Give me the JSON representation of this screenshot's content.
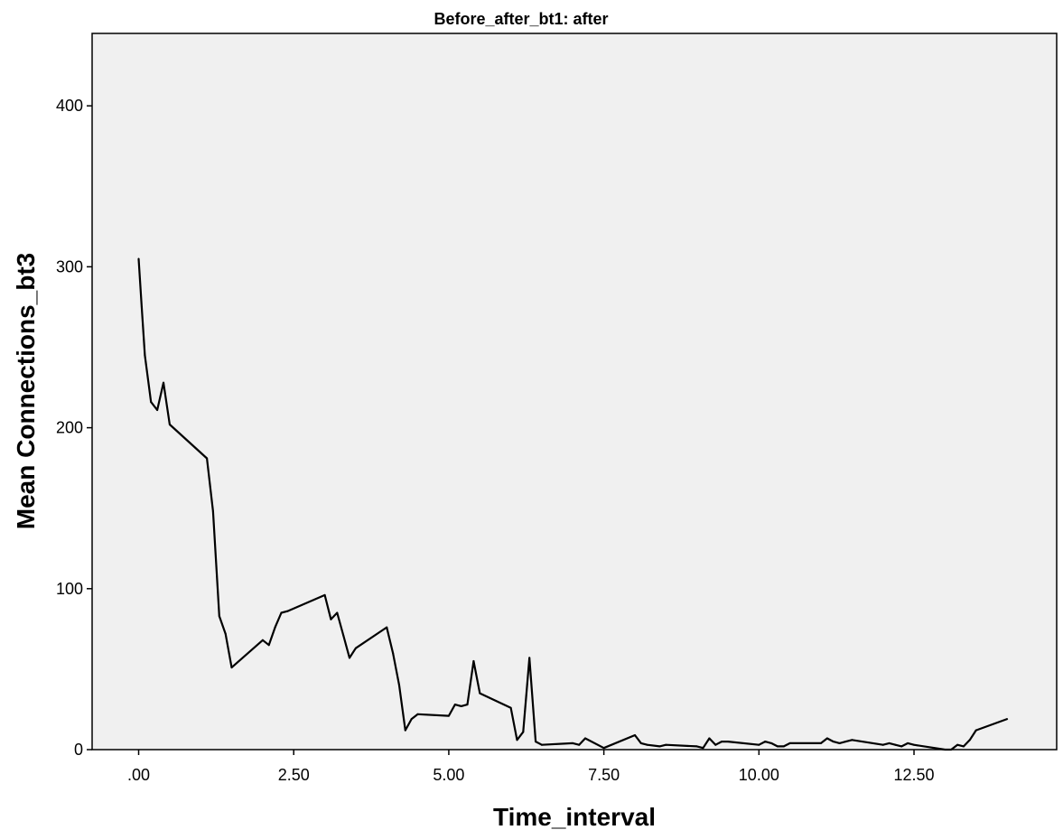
{
  "chart_data": {
    "type": "line",
    "title": "Before_after_bt1: after",
    "xlabel": "Time_interval",
    "ylabel": "Mean Connections_bt3",
    "xlim": [
      -0.75,
      14.8
    ],
    "ylim": [
      0,
      445
    ],
    "x_ticks": [
      0,
      2.5,
      5,
      7.5,
      10,
      12.5
    ],
    "x_tick_labels": [
      ".00",
      "2.50",
      "5.00",
      "7.50",
      "10.00",
      "12.50"
    ],
    "y_ticks": [
      0,
      100,
      200,
      300,
      400
    ],
    "y_tick_labels": [
      "0",
      "100",
      "200",
      "300",
      "400"
    ],
    "grid": false,
    "legend": "none",
    "colors": {
      "plot_background": "#f0f0f0",
      "line": "#000000",
      "frame": "#000000"
    },
    "series": [
      {
        "x": [
          0.0,
          0.05,
          0.1,
          0.2,
          0.3,
          0.4,
          0.5,
          1.1,
          1.2,
          1.3,
          1.4,
          1.5,
          2.0,
          2.1,
          2.2,
          2.3,
          2.4,
          3.0,
          3.1,
          3.2,
          3.3,
          3.4,
          3.5,
          4.0,
          4.1,
          4.2,
          4.3,
          4.4,
          4.5,
          5.0,
          5.1,
          5.2,
          5.3,
          5.4,
          5.5,
          6.0,
          6.1,
          6.2,
          6.3,
          6.4,
          6.5,
          7.0,
          7.1,
          7.2,
          7.5,
          8.0,
          8.1,
          8.2,
          8.4,
          8.5,
          9.0,
          9.1,
          9.2,
          9.3,
          9.4,
          9.5,
          10.0,
          10.1,
          10.2,
          10.3,
          10.4,
          10.5,
          11.0,
          11.1,
          11.2,
          11.3,
          11.4,
          11.5,
          12.0,
          12.1,
          12.2,
          12.3,
          12.4,
          12.5,
          13.0,
          13.1,
          13.2,
          13.3,
          13.4,
          13.5,
          14.0
        ],
        "values": [
          305,
          275,
          245,
          216,
          211,
          228,
          202,
          181,
          148,
          83,
          72,
          51,
          68,
          65,
          76,
          85,
          86,
          96,
          81,
          85,
          71,
          57,
          63,
          76,
          60,
          40,
          12,
          19,
          22,
          21,
          28,
          27,
          28,
          55,
          35,
          26,
          6,
          11,
          57,
          5,
          3,
          4,
          3,
          7,
          1,
          9,
          4,
          3,
          2,
          3,
          2,
          1,
          7,
          3,
          5,
          5,
          3,
          5,
          4,
          2,
          2,
          4,
          4,
          7,
          5,
          4,
          5,
          6,
          3,
          4,
          3,
          2,
          4,
          3,
          0,
          0,
          3,
          2,
          6,
          12,
          19
        ]
      }
    ]
  }
}
